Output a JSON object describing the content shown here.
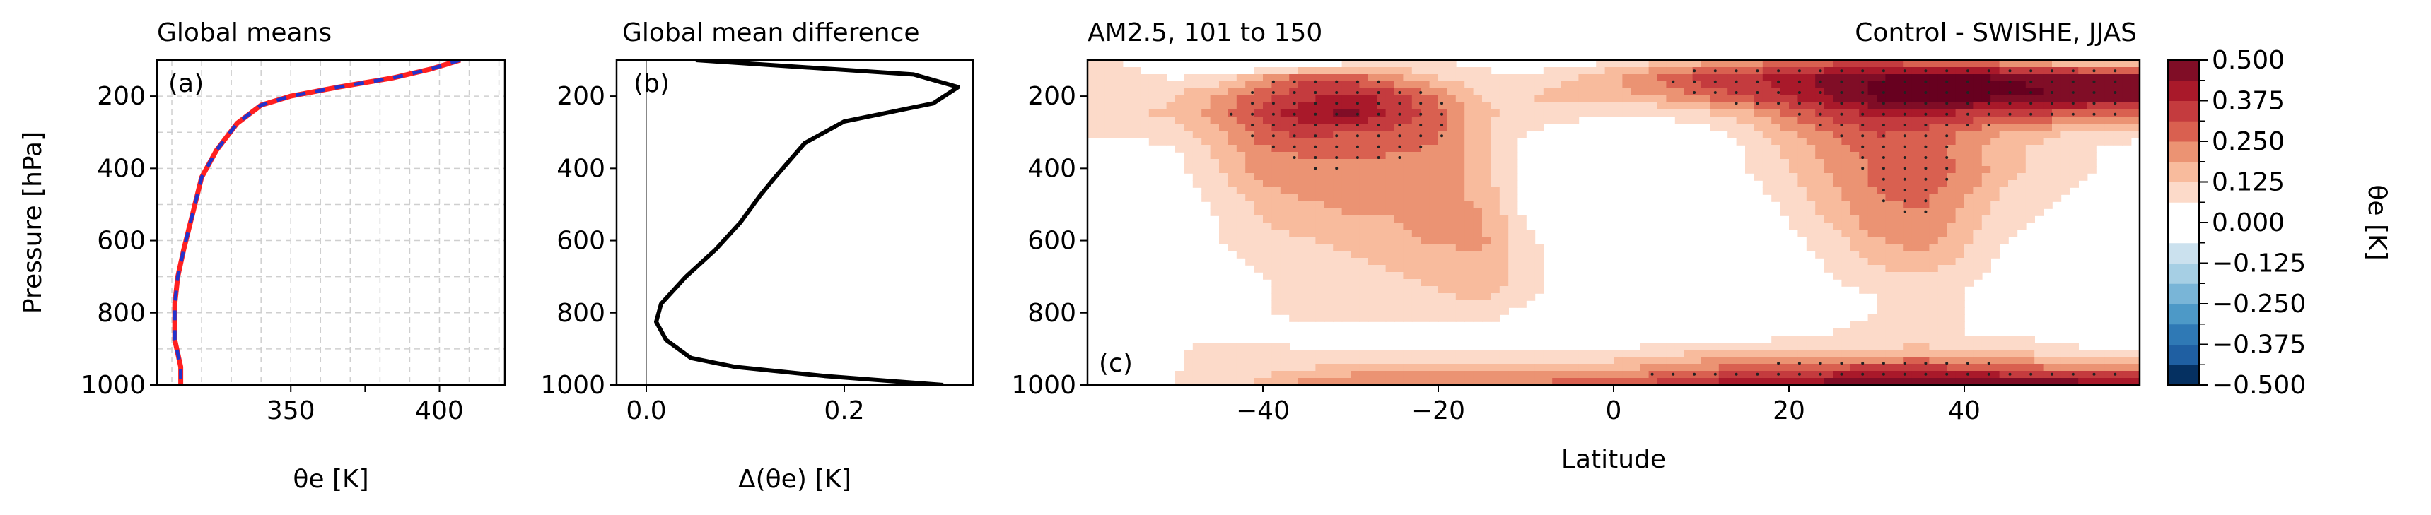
{
  "chart_data": [
    {
      "type": "line",
      "title": "Global means",
      "panel_label": "(a)",
      "xlabel": "θe [K]",
      "ylabel": "Pressure [hPa]",
      "xlim": [
        305,
        422
      ],
      "ylim": [
        1000,
        100
      ],
      "xticks": [
        350,
        375,
        400
      ],
      "xticklabels": [
        "350",
        "400"
      ],
      "xticklabel_values": [
        350,
        400
      ],
      "yticks": [
        200,
        400,
        600,
        800,
        1000
      ],
      "yticklabels": [
        "200",
        "400",
        "600",
        "800",
        "1000"
      ],
      "grid": true,
      "series": [
        {
          "color": "#ff2020",
          "style": "solid",
          "x": [
            407,
            397,
            384,
            366,
            350,
            340,
            332,
            325,
            320,
            317,
            314,
            312,
            311,
            311,
            313,
            313
          ],
          "y": [
            100,
            125,
            150,
            175,
            200,
            225,
            275,
            350,
            425,
            525,
            625,
            700,
            775,
            875,
            950,
            1000
          ]
        },
        {
          "color": "#2233cc",
          "style": "dashed",
          "x": [
            407,
            397,
            384,
            366,
            350,
            340,
            332,
            325,
            320,
            317,
            314,
            312,
            311,
            311,
            313,
            313
          ],
          "y": [
            100,
            125,
            150,
            175,
            200,
            225,
            275,
            350,
            425,
            525,
            625,
            700,
            775,
            875,
            950,
            1000
          ]
        }
      ]
    },
    {
      "type": "line",
      "title": "Global mean difference",
      "panel_label": "(b)",
      "xlabel": "Δ(θe) [K]",
      "xlim": [
        -0.03,
        0.33
      ],
      "ylim": [
        1000,
        100
      ],
      "xticks": [
        0.0,
        0.2
      ],
      "xticklabels": [
        "0.0",
        "0.2"
      ],
      "yticks": [
        200,
        400,
        600,
        800,
        1000
      ],
      "yticklabels": [
        "200",
        "400",
        "600",
        "800",
        "1000"
      ],
      "zero_line": true,
      "series": [
        {
          "color": "#000000",
          "style": "solid",
          "x": [
            0.05,
            0.27,
            0.315,
            0.29,
            0.2,
            0.16,
            0.13,
            0.115,
            0.095,
            0.07,
            0.04,
            0.015,
            0.01,
            0.02,
            0.045,
            0.09,
            0.18,
            0.3
          ],
          "y": [
            100,
            140,
            175,
            220,
            270,
            330,
            425,
            475,
            550,
            625,
            700,
            775,
            825,
            875,
            925,
            950,
            975,
            1000
          ]
        }
      ]
    },
    {
      "type": "heatmap",
      "title": "AM2.5, 101 to 150",
      "title_right": "Control - SWISHE, JJAS",
      "panel_label": "(c)",
      "xlabel": "Latitude",
      "xlim": [
        -60,
        60
      ],
      "ylim": [
        1000,
        100
      ],
      "xticks": [
        -40,
        -20,
        0,
        20,
        40
      ],
      "xticklabels": [
        "−40",
        "−20",
        "0",
        "20",
        "40"
      ],
      "yticks": [
        200,
        400,
        600,
        800,
        1000
      ],
      "yticklabels": [
        "200",
        "400",
        "600",
        "800",
        "1000"
      ],
      "lat": [
        -60,
        -55,
        -50,
        -45,
        -40,
        -35,
        -30,
        -25,
        -20,
        -15,
        -10,
        -5,
        0,
        5,
        10,
        15,
        20,
        25,
        30,
        35,
        40,
        45,
        50,
        55,
        60
      ],
      "pressure": [
        100,
        150,
        200,
        250,
        300,
        350,
        400,
        450,
        500,
        550,
        600,
        650,
        700,
        750,
        800,
        850,
        900,
        950,
        1000
      ],
      "values": [
        [
          0.08,
          0.05,
          0.02,
          -0.05,
          -0.1,
          -0.08,
          0.02,
          0.05,
          0.06,
          0.04,
          0.02,
          0.02,
          0.06,
          0.1,
          0.15,
          0.2,
          0.25,
          0.28,
          0.28,
          0.25,
          0.22,
          0.18,
          0.12,
          0.08,
          0.05
        ],
        [
          0.1,
          0.08,
          0.06,
          0.08,
          0.2,
          0.3,
          0.28,
          0.2,
          0.12,
          0.08,
          0.08,
          0.12,
          0.18,
          0.26,
          0.34,
          0.36,
          0.4,
          0.46,
          0.5,
          0.52,
          0.52,
          0.5,
          0.48,
          0.46,
          0.45
        ],
        [
          0.1,
          0.1,
          0.12,
          0.2,
          0.3,
          0.36,
          0.4,
          0.34,
          0.24,
          0.12,
          0.12,
          0.16,
          0.16,
          0.2,
          0.26,
          0.32,
          0.38,
          0.46,
          0.52,
          0.54,
          0.54,
          0.52,
          0.5,
          0.48,
          0.48
        ],
        [
          0.1,
          0.12,
          0.14,
          0.22,
          0.34,
          0.42,
          0.45,
          0.36,
          0.28,
          0.14,
          0.1,
          0.08,
          0.06,
          0.06,
          0.1,
          0.16,
          0.26,
          0.34,
          0.38,
          0.38,
          0.36,
          0.32,
          0.3,
          0.28,
          0.26
        ],
        [
          0.08,
          0.08,
          0.1,
          0.18,
          0.28,
          0.34,
          0.3,
          0.3,
          0.26,
          0.14,
          0.06,
          0.04,
          0.02,
          0.02,
          0.04,
          0.08,
          0.18,
          0.26,
          0.32,
          0.3,
          0.24,
          0.18,
          0.14,
          0.1,
          0.08
        ],
        [
          0.0,
          0.02,
          0.06,
          0.14,
          0.24,
          0.26,
          0.26,
          0.26,
          0.24,
          0.14,
          0.04,
          0.02,
          0.0,
          0.02,
          0.04,
          0.06,
          0.14,
          0.22,
          0.28,
          0.3,
          0.22,
          0.14,
          0.1,
          0.06,
          0.04
        ],
        [
          -0.04,
          -0.02,
          0.04,
          0.12,
          0.22,
          0.24,
          0.24,
          0.22,
          0.22,
          0.16,
          0.04,
          0.02,
          0.0,
          0.0,
          0.02,
          0.06,
          0.12,
          0.2,
          0.26,
          0.3,
          0.24,
          0.14,
          0.1,
          0.06,
          0.04
        ],
        [
          -0.04,
          -0.02,
          0.02,
          0.1,
          0.18,
          0.22,
          0.22,
          0.22,
          0.22,
          0.16,
          0.04,
          0.0,
          0.0,
          0.0,
          0.0,
          0.04,
          0.1,
          0.18,
          0.26,
          0.28,
          0.22,
          0.12,
          0.08,
          0.04,
          0.02
        ],
        [
          -0.04,
          -0.02,
          0.02,
          0.08,
          0.14,
          0.18,
          0.2,
          0.2,
          0.22,
          0.18,
          0.04,
          0.0,
          0.0,
          0.0,
          0.0,
          0.02,
          0.08,
          0.16,
          0.24,
          0.26,
          0.18,
          0.1,
          0.06,
          0.02,
          0.02
        ],
        [
          -0.04,
          -0.02,
          0.02,
          0.06,
          0.12,
          0.16,
          0.18,
          0.18,
          0.24,
          0.2,
          0.06,
          0.0,
          0.0,
          0.0,
          0.0,
          0.02,
          0.06,
          0.14,
          0.22,
          0.24,
          0.16,
          0.08,
          0.04,
          0.02,
          0.02
        ],
        [
          -0.04,
          -0.02,
          0.02,
          0.06,
          0.1,
          0.12,
          0.14,
          0.16,
          0.2,
          0.2,
          0.08,
          0.02,
          0.0,
          0.0,
          0.0,
          0.02,
          0.04,
          0.1,
          0.18,
          0.22,
          0.14,
          0.06,
          0.02,
          0.02,
          0.02
        ],
        [
          -0.04,
          -0.02,
          0.02,
          0.04,
          0.08,
          0.1,
          0.12,
          0.14,
          0.16,
          0.18,
          0.1,
          0.02,
          0.0,
          0.0,
          0.0,
          0.0,
          0.02,
          0.08,
          0.14,
          0.18,
          0.12,
          0.04,
          0.02,
          0.02,
          0.02
        ],
        [
          -0.04,
          -0.02,
          0.02,
          0.04,
          0.06,
          0.08,
          0.1,
          0.12,
          0.14,
          0.18,
          0.1,
          0.02,
          0.0,
          0.0,
          0.0,
          0.0,
          0.02,
          0.06,
          0.1,
          0.12,
          0.08,
          0.04,
          0.02,
          0.02,
          0.02
        ],
        [
          -0.04,
          -0.02,
          0.02,
          0.04,
          0.06,
          0.08,
          0.1,
          0.1,
          0.12,
          0.14,
          0.08,
          0.02,
          0.0,
          0.0,
          0.0,
          0.0,
          0.02,
          0.04,
          0.06,
          0.1,
          0.06,
          0.02,
          0.0,
          0.0,
          0.0
        ],
        [
          -0.04,
          -0.02,
          0.02,
          0.04,
          0.06,
          0.08,
          0.08,
          0.08,
          0.1,
          0.1,
          0.04,
          0.0,
          0.0,
          -0.02,
          0.0,
          0.0,
          0.0,
          0.02,
          0.06,
          0.1,
          0.06,
          0.02,
          0.0,
          0.0,
          0.0
        ],
        [
          0.0,
          0.02,
          0.04,
          0.04,
          0.04,
          0.04,
          0.02,
          0.02,
          0.02,
          0.02,
          0.0,
          0.0,
          0.0,
          0.0,
          0.0,
          0.02,
          0.04,
          0.06,
          0.1,
          0.08,
          0.06,
          0.04,
          0.04,
          0.04,
          0.04
        ],
        [
          0.02,
          0.04,
          0.06,
          0.08,
          0.08,
          0.06,
          0.06,
          0.06,
          0.06,
          0.06,
          0.06,
          0.06,
          0.06,
          0.08,
          0.1,
          0.1,
          0.1,
          0.1,
          0.12,
          0.14,
          0.12,
          0.1,
          0.08,
          0.06,
          0.06
        ],
        [
          0.02,
          0.04,
          0.06,
          0.08,
          0.1,
          0.12,
          0.14,
          0.14,
          0.14,
          0.14,
          0.14,
          0.16,
          0.16,
          0.2,
          0.24,
          0.26,
          0.28,
          0.3,
          0.32,
          0.32,
          0.3,
          0.26,
          0.24,
          0.22,
          0.22
        ],
        [
          0.02,
          0.04,
          0.06,
          0.1,
          0.14,
          0.22,
          0.26,
          0.26,
          0.26,
          0.26,
          0.26,
          0.28,
          0.3,
          0.34,
          0.4,
          0.42,
          0.44,
          0.48,
          0.52,
          0.54,
          0.54,
          0.52,
          0.5,
          0.48,
          0.48
        ]
      ],
      "colorbar": {
        "label": "θe [K]",
        "levels": [
          -0.5,
          -0.4375,
          -0.375,
          -0.3125,
          -0.25,
          -0.1875,
          -0.125,
          -0.0625,
          0.0,
          0.0625,
          0.125,
          0.1875,
          0.25,
          0.3125,
          0.375,
          0.4375,
          0.5
        ],
        "tick_values": [
          0.5,
          0.375,
          0.25,
          0.125,
          0.0,
          -0.125,
          -0.25,
          -0.375,
          -0.5
        ],
        "ticklabels": [
          "0.500",
          "0.375",
          "0.250",
          "0.125",
          "0.000",
          "−0.125",
          "−0.250",
          "−0.375",
          "−0.500"
        ],
        "colors": [
          "#053061",
          "#1f5fa2",
          "#2f79b5",
          "#4d99c7",
          "#79b5d7",
          "#a6cfe4",
          "#cbe1ee",
          "#ffffff",
          "#ffffff",
          "#fcdac9",
          "#f8bb9d",
          "#eb9373",
          "#d96050",
          "#c43b3e",
          "#a9192a",
          "#800d26",
          "#67001f"
        ]
      },
      "stippling": "significance dots"
    }
  ]
}
